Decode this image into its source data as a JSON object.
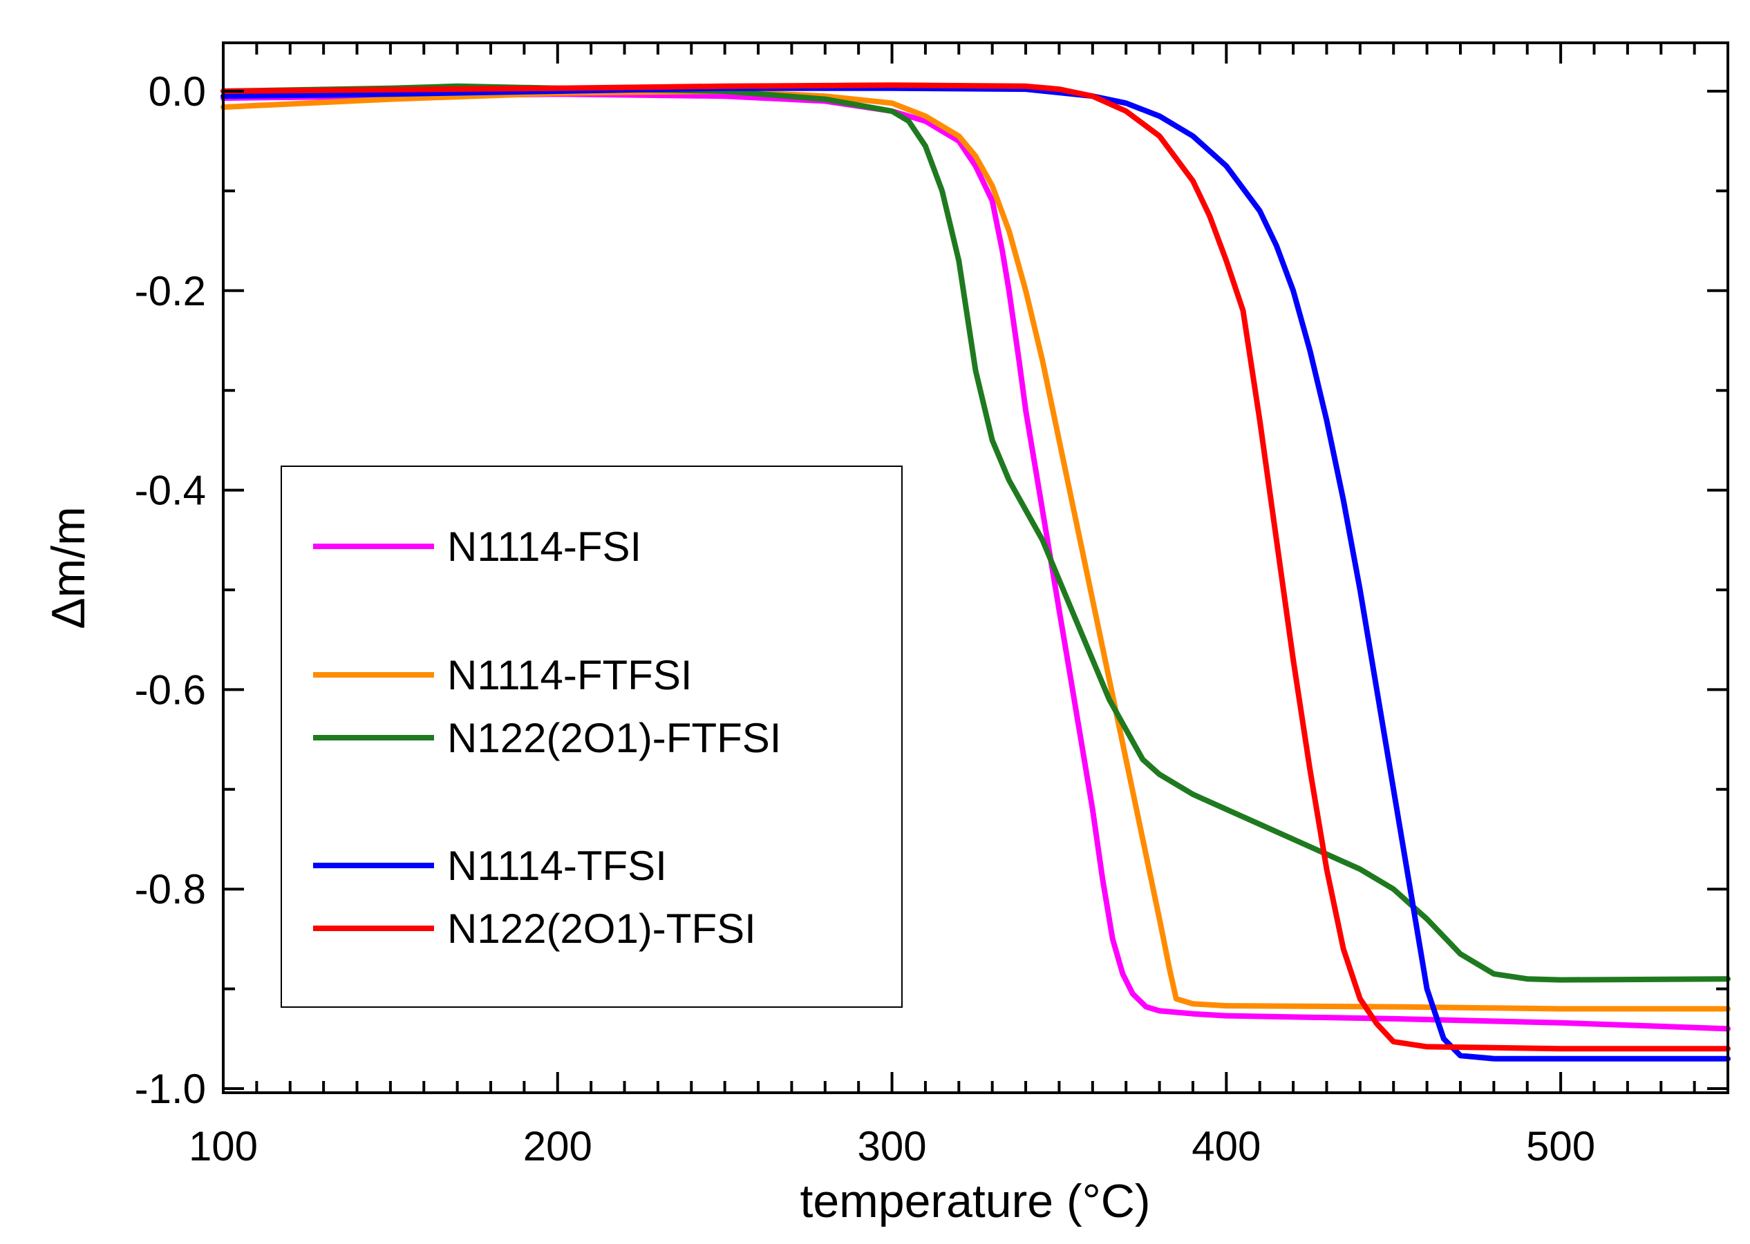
{
  "chart_data": {
    "type": "line",
    "title": "",
    "xlabel": "temperature (°C)",
    "ylabel": "Δm/m",
    "xlim": [
      100,
      550
    ],
    "ylim": [
      -1.0,
      0.05
    ],
    "xticks": [
      100,
      200,
      300,
      400,
      500
    ],
    "xtick_labels": [
      "100",
      "200",
      "300",
      "400",
      "500"
    ],
    "yticks": [
      0.0,
      -0.2,
      -0.4,
      -0.6,
      -0.8,
      -1.0
    ],
    "ytick_labels": [
      "0.0",
      "-0.2",
      "-0.4",
      "-0.6",
      "-0.8",
      "-1.0"
    ],
    "x_minor_step": 10,
    "y_minor_step": 0.1,
    "grid": false,
    "legend_position": "left-center",
    "series": [
      {
        "name": "N1114-FSI",
        "color": "#ff00ff",
        "x": [
          100,
          150,
          200,
          250,
          280,
          300,
          310,
          320,
          325,
          330,
          333,
          335,
          338,
          340,
          343,
          346,
          350,
          353,
          356,
          360,
          363,
          366,
          369,
          372,
          376,
          380,
          390,
          400,
          450,
          500,
          550
        ],
        "y": [
          -0.007,
          -0.005,
          -0.003,
          -0.005,
          -0.01,
          -0.02,
          -0.03,
          -0.05,
          -0.075,
          -0.11,
          -0.16,
          -0.2,
          -0.27,
          -0.32,
          -0.38,
          -0.44,
          -0.52,
          -0.58,
          -0.64,
          -0.72,
          -0.79,
          -0.85,
          -0.885,
          -0.905,
          -0.918,
          -0.922,
          -0.925,
          -0.927,
          -0.93,
          -0.934,
          -0.94
        ]
      },
      {
        "name": "N1114-FTFSI",
        "color": "#ff8c00",
        "x": [
          100,
          150,
          200,
          250,
          280,
          300,
          310,
          320,
          325,
          330,
          335,
          340,
          345,
          350,
          355,
          360,
          365,
          370,
          375,
          380,
          383,
          385,
          390,
          400,
          450,
          500,
          550
        ],
        "y": [
          -0.016,
          -0.008,
          -0.002,
          0.0,
          -0.005,
          -0.012,
          -0.025,
          -0.045,
          -0.065,
          -0.095,
          -0.14,
          -0.2,
          -0.27,
          -0.35,
          -0.43,
          -0.51,
          -0.59,
          -0.67,
          -0.75,
          -0.83,
          -0.88,
          -0.91,
          -0.915,
          -0.917,
          -0.918,
          -0.92,
          -0.92
        ]
      },
      {
        "name": "N122(2O1)-FTFSI",
        "color": "#1f7a1f",
        "x": [
          100,
          150,
          170,
          200,
          250,
          280,
          300,
          305,
          310,
          315,
          320,
          325,
          330,
          335,
          340,
          345,
          350,
          355,
          360,
          365,
          370,
          375,
          380,
          390,
          400,
          410,
          420,
          430,
          440,
          450,
          460,
          470,
          480,
          490,
          500,
          550
        ],
        "y": [
          0.0,
          0.003,
          0.005,
          0.003,
          0.0,
          -0.008,
          -0.02,
          -0.03,
          -0.055,
          -0.1,
          -0.17,
          -0.28,
          -0.35,
          -0.39,
          -0.42,
          -0.45,
          -0.49,
          -0.53,
          -0.57,
          -0.61,
          -0.64,
          -0.67,
          -0.685,
          -0.705,
          -0.72,
          -0.735,
          -0.75,
          -0.765,
          -0.78,
          -0.8,
          -0.83,
          -0.865,
          -0.885,
          -0.89,
          -0.891,
          -0.89
        ]
      },
      {
        "name": "N1114-TFSI",
        "color": "#0000ff",
        "x": [
          100,
          150,
          200,
          250,
          300,
          340,
          360,
          370,
          380,
          390,
          400,
          410,
          415,
          420,
          425,
          430,
          435,
          440,
          445,
          450,
          455,
          460,
          465,
          470,
          480,
          500,
          550
        ],
        "y": [
          -0.005,
          -0.003,
          0.0,
          0.003,
          0.003,
          0.002,
          -0.005,
          -0.012,
          -0.025,
          -0.045,
          -0.075,
          -0.12,
          -0.155,
          -0.2,
          -0.26,
          -0.33,
          -0.41,
          -0.5,
          -0.6,
          -0.7,
          -0.8,
          -0.9,
          -0.95,
          -0.967,
          -0.97,
          -0.97,
          -0.97
        ]
      },
      {
        "name": "N122(2O1)-TFSI",
        "color": "#ff0000",
        "x": [
          100,
          200,
          250,
          300,
          340,
          350,
          360,
          370,
          380,
          390,
          395,
          400,
          405,
          410,
          415,
          420,
          425,
          430,
          435,
          440,
          445,
          450,
          460,
          500,
          550
        ],
        "y": [
          0.0,
          0.003,
          0.005,
          0.006,
          0.005,
          0.002,
          -0.005,
          -0.02,
          -0.045,
          -0.09,
          -0.125,
          -0.17,
          -0.22,
          -0.33,
          -0.45,
          -0.57,
          -0.68,
          -0.78,
          -0.86,
          -0.91,
          -0.935,
          -0.953,
          -0.958,
          -0.96,
          -0.96
        ]
      }
    ],
    "legend": {
      "entries": [
        {
          "label": "N1114-FSI",
          "series": 0
        },
        {
          "label": "N1114-FTFSI",
          "series": 1
        },
        {
          "label": "N122(2O1)-FTFSI",
          "series": 2
        },
        {
          "label": "N1114-TFSI",
          "series": 3
        },
        {
          "label": "N122(2O1)-TFSI",
          "series": 4
        }
      ]
    }
  }
}
